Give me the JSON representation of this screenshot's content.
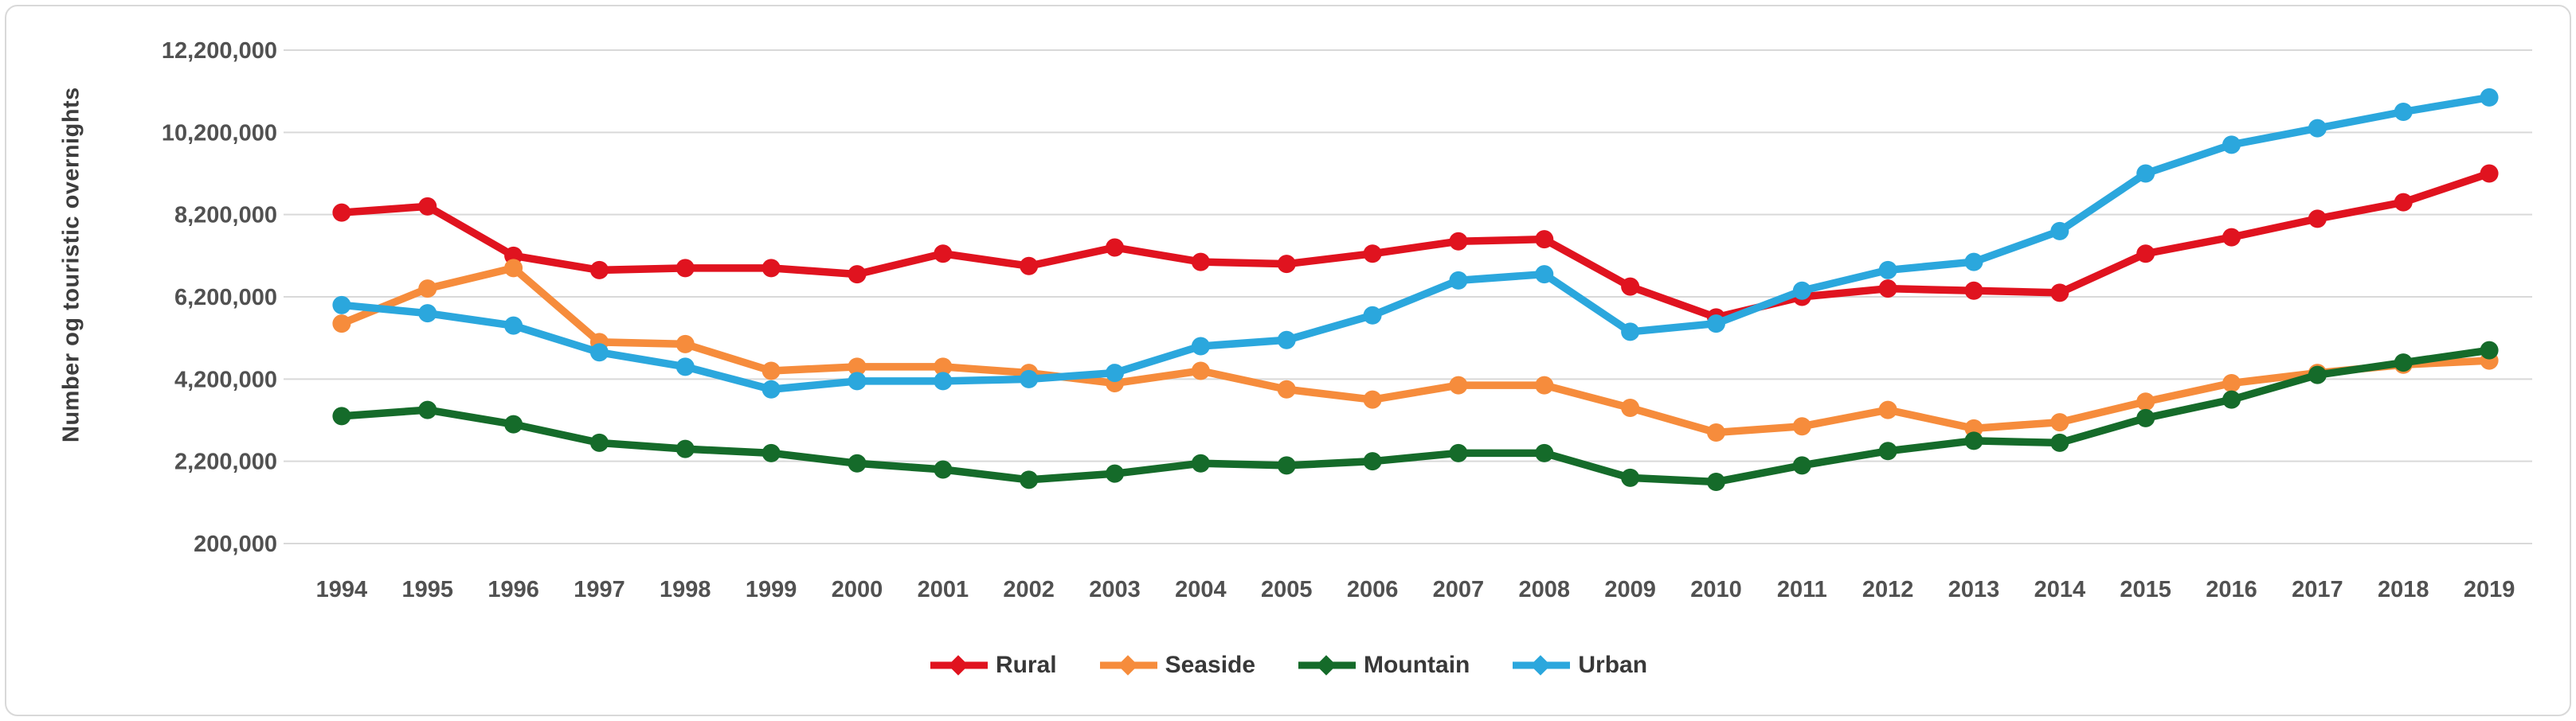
{
  "chart_data": {
    "type": "line",
    "title": "",
    "ylabel": "Number og touristic overnights",
    "xlabel": "",
    "categories": [
      "1994",
      "1995",
      "1996",
      "1997",
      "1998",
      "1999",
      "2000",
      "2001",
      "2002",
      "2003",
      "2004",
      "2005",
      "2006",
      "2007",
      "2008",
      "2009",
      "2010",
      "2011",
      "2012",
      "2013",
      "2014",
      "2015",
      "2016",
      "2017",
      "2018",
      "2019"
    ],
    "series": [
      {
        "name": "Rural",
        "color": "#e0131f",
        "values": [
          8250000,
          8400000,
          7200000,
          6850000,
          6900000,
          6900000,
          6750000,
          7250000,
          6950000,
          7400000,
          7050000,
          7000000,
          7250000,
          7550000,
          7600000,
          6450000,
          5700000,
          6200000,
          6400000,
          6350000,
          6300000,
          7250000,
          7650000,
          8100000,
          8500000,
          9200000
        ]
      },
      {
        "name": "Seaside",
        "color": "#f68c3c",
        "values": [
          5550000,
          6400000,
          6900000,
          5100000,
          5050000,
          4400000,
          4500000,
          4500000,
          4350000,
          4100000,
          4400000,
          3950000,
          3700000,
          4050000,
          4050000,
          3500000,
          2900000,
          3050000,
          3450000,
          3000000,
          3150000,
          3650000,
          4100000,
          4350000,
          4550000,
          4650000
        ]
      },
      {
        "name": "Mountain",
        "color": "#156b2a",
        "values": [
          3300000,
          3450000,
          3100000,
          2650000,
          2500000,
          2400000,
          2150000,
          2000000,
          1750000,
          1900000,
          2150000,
          2100000,
          2200000,
          2400000,
          2400000,
          1800000,
          1700000,
          2100000,
          2450000,
          2700000,
          2650000,
          3250000,
          3700000,
          4300000,
          4600000,
          4900000
        ]
      },
      {
        "name": "Urban",
        "color": "#2ba7dd",
        "values": [
          6000000,
          5800000,
          5500000,
          4850000,
          4500000,
          3950000,
          4150000,
          4150000,
          4200000,
          4350000,
          5000000,
          5150000,
          5750000,
          6600000,
          6750000,
          5350000,
          5550000,
          6350000,
          6850000,
          7050000,
          7800000,
          9200000,
          9900000,
          10300000,
          10700000,
          11050000
        ]
      }
    ],
    "y_axis": {
      "min": 200000,
      "max": 12200000,
      "tick_interval": 2000000,
      "tick_labels": [
        "200,000",
        "2,200,000",
        "4,200,000",
        "6,200,000",
        "8,200,000",
        "10,200,000",
        "12,200,000"
      ]
    },
    "grid": true,
    "legend_position": "bottom"
  },
  "styles": {
    "background": "#ffffff",
    "card_border_color": "#d9d9d9",
    "grid_color": "#d9d9d9",
    "axis_label_color": "#515151",
    "axis_title_color": "#3d3d3d",
    "legend_text_color": "#383838"
  }
}
